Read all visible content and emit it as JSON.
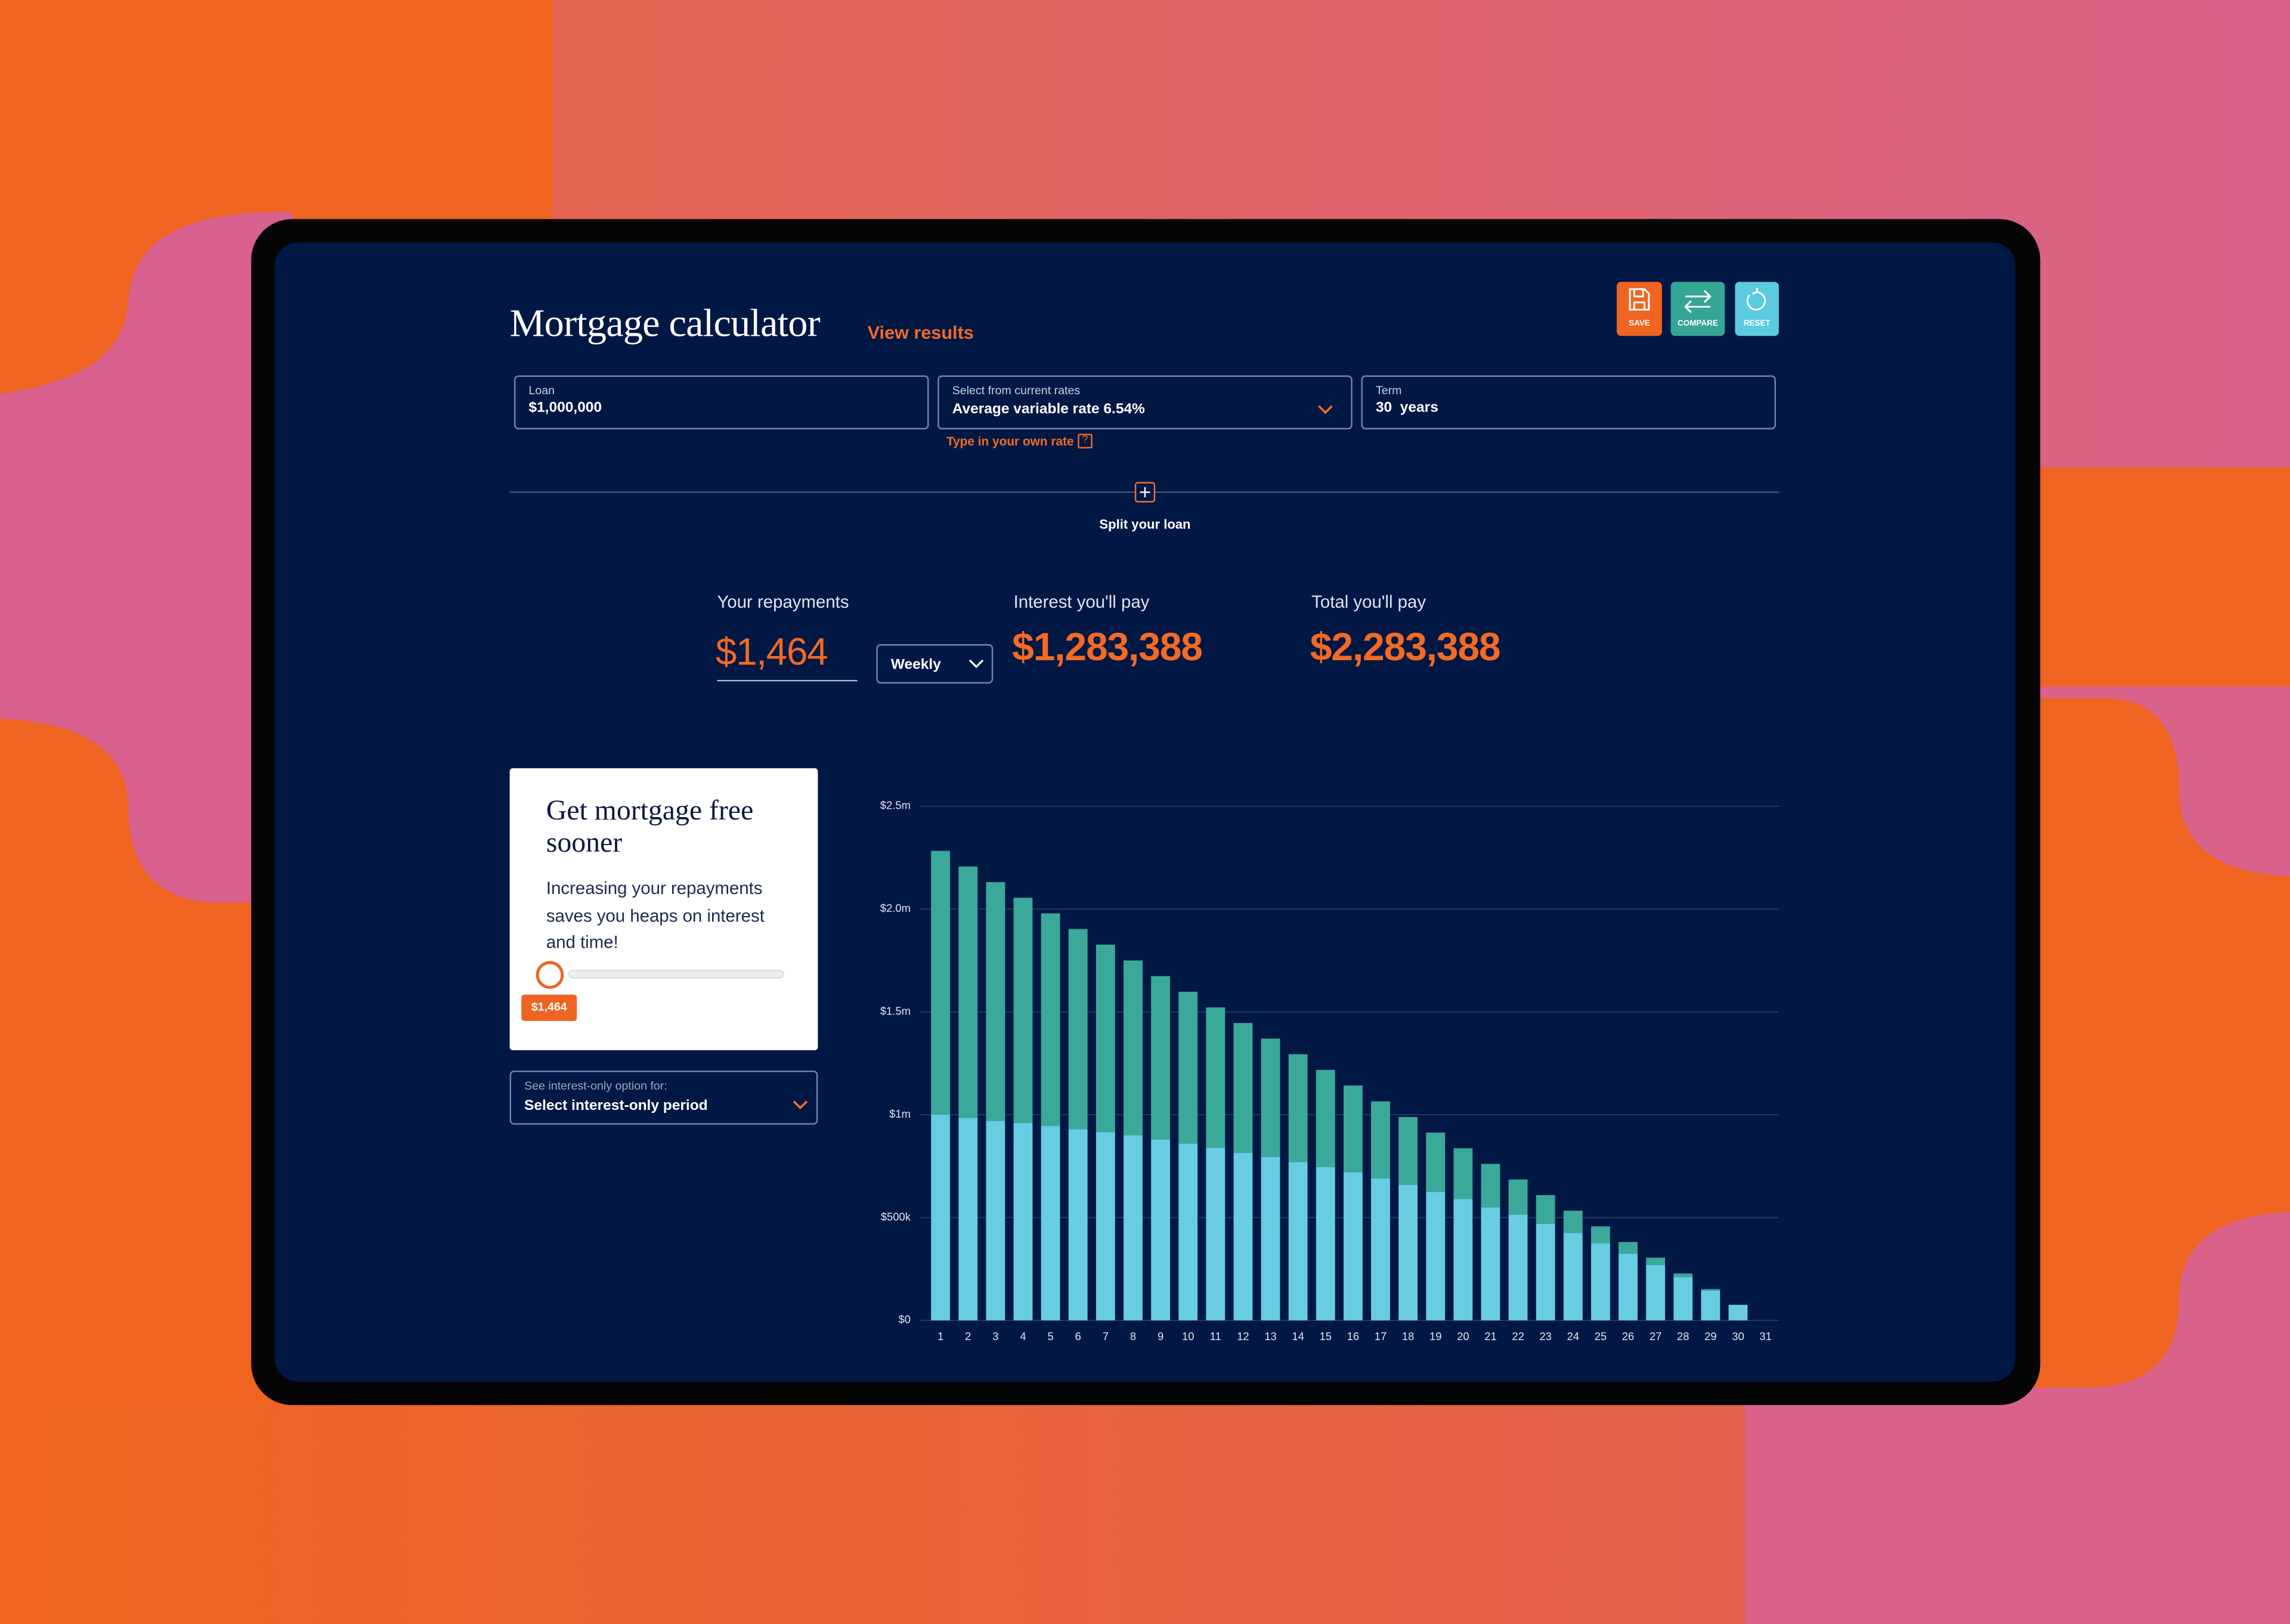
{
  "header": {
    "title": "Mortgage calculator",
    "link": "View results",
    "buttons": [
      "SAVE",
      "COMPARE",
      "RESET"
    ]
  },
  "inputs": {
    "loan": {
      "label": "Loan",
      "value": "$1,000,000"
    },
    "rate": {
      "label": "Select from current rates",
      "value": "Average variable rate 6.54%",
      "link": "Type in your own rate",
      "help": "?"
    },
    "term": {
      "label": "Term",
      "value": "30",
      "unit": "years"
    }
  },
  "split": "Split your loan",
  "summary": {
    "repayments": {
      "label": "Your repayments",
      "value": "$1,464",
      "frequency": "Weekly"
    },
    "interest": {
      "label": "Interest you'll pay",
      "value": "$1,283,388"
    },
    "total": {
      "label": "Total you'll pay",
      "value": "$2,283,388"
    }
  },
  "promo": {
    "title": "Get mortgage free sooner",
    "text": "Increasing your repayments saves you heaps on interest and time!",
    "slider_value": "$1,464"
  },
  "interest_only": {
    "label": "See interest-only option for:",
    "value": "Select interest-only period"
  },
  "chart_data": {
    "type": "bar",
    "stacked": true,
    "categories": [
      "1",
      "2",
      "3",
      "4",
      "5",
      "6",
      "7",
      "8",
      "9",
      "10",
      "11",
      "12",
      "13",
      "14",
      "15",
      "16",
      "17",
      "18",
      "19",
      "20",
      "21",
      "22",
      "23",
      "24",
      "25",
      "26",
      "27",
      "28",
      "29",
      "30",
      "31"
    ],
    "series": [
      {
        "color": "#68cce3",
        "values": [
          1000000,
          985000,
          970000,
          960000,
          945000,
          930000,
          915000,
          900000,
          880000,
          860000,
          840000,
          815000,
          795000,
          770000,
          745000,
          720000,
          690000,
          660000,
          625000,
          590000,
          550000,
          515000,
          470000,
          425000,
          375000,
          325000,
          270000,
          210000,
          145000,
          75000,
          0
        ]
      },
      {
        "color": "#3aa99a",
        "values": [
          1283000,
          1222000,
          1161000,
          1095000,
          1034000,
          973000,
          912000,
          850000,
          794000,
          738000,
          682000,
          631000,
          575000,
          524000,
          473000,
          422000,
          375000,
          329000,
          288000,
          247000,
          211000,
          170000,
          139000,
          108000,
          82000,
          56000,
          35000,
          18000,
          7000,
          1000,
          0
        ]
      }
    ],
    "ylim": [
      0,
      2500000
    ],
    "yticks": [
      {
        "value": 0,
        "label": "$0"
      },
      {
        "value": 500000,
        "label": "$500k"
      },
      {
        "value": 1000000,
        "label": "$1m"
      },
      {
        "value": 1500000,
        "label": "$1.5m"
      },
      {
        "value": 2000000,
        "label": "$2.0m"
      },
      {
        "value": 2500000,
        "label": "$2.5m"
      }
    ],
    "grid": true
  }
}
